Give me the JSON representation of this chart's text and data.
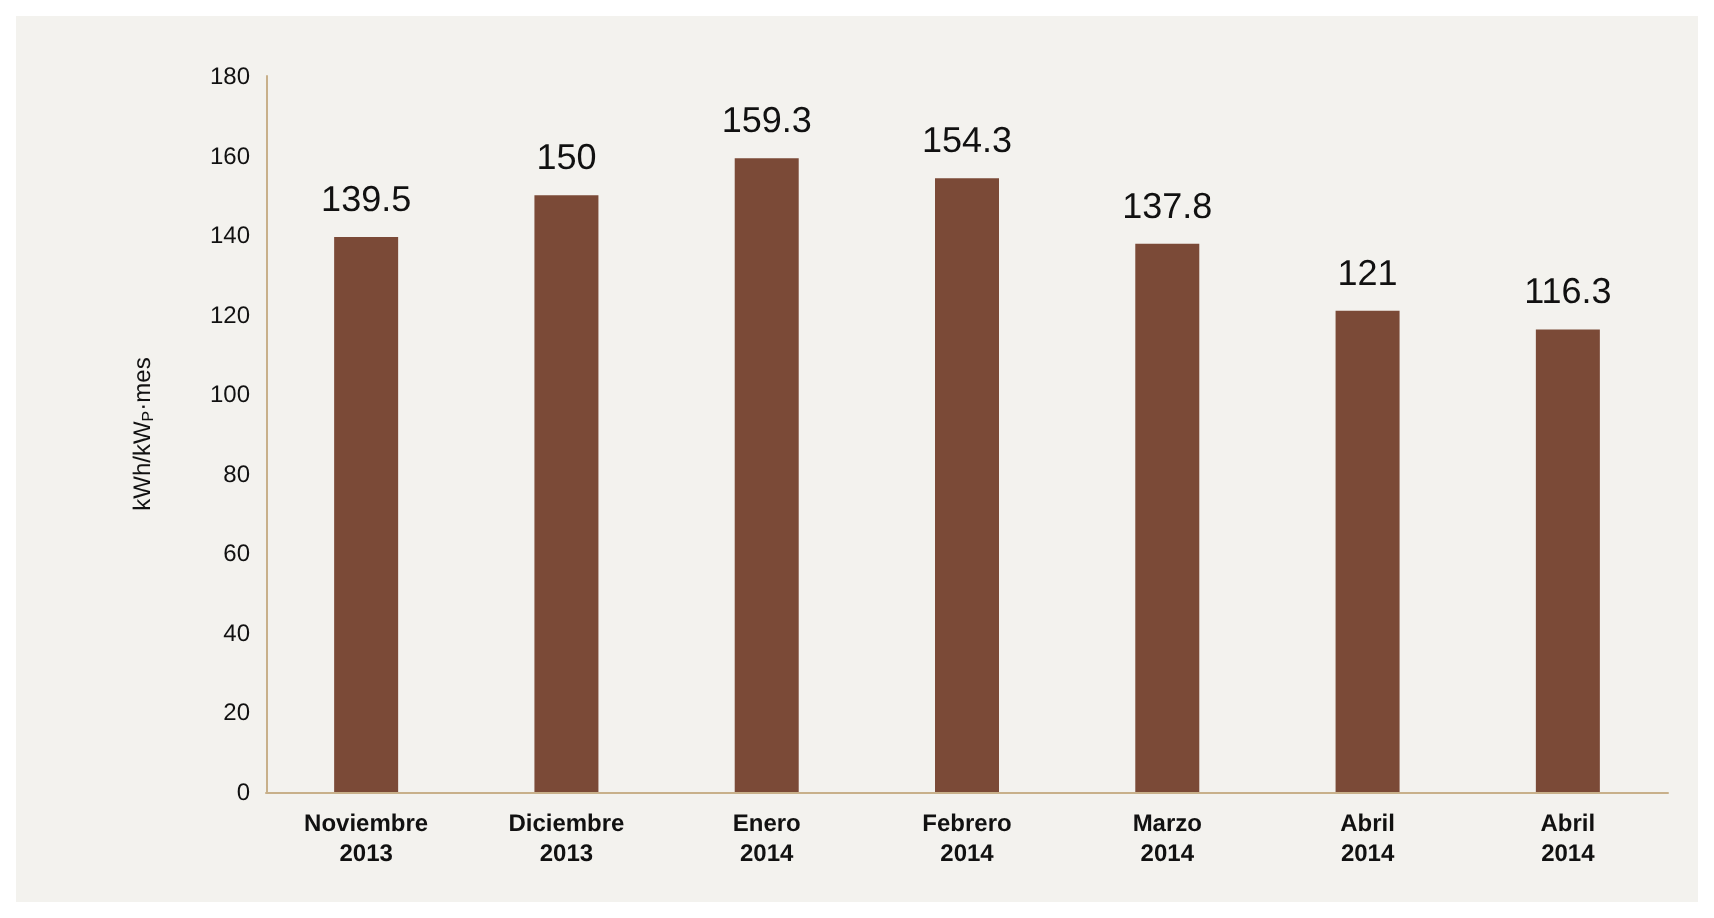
{
  "chart_data": {
    "type": "bar",
    "ylabel": "kWh/kW$_{P}$·mes",
    "categories": [
      "Noviembre\n2013",
      "Diciembre\n2013",
      "Enero\n2014",
      "Febrero\n2014",
      "Marzo\n2014",
      "Abril\n2014",
      "Abril\n2014"
    ],
    "values": [
      139.5,
      150,
      159.3,
      154.3,
      137.8,
      121,
      116.3
    ],
    "color": "#7b4a37",
    "ylim": [
      0,
      180
    ],
    "yticks": [
      0,
      20,
      40,
      60,
      80,
      100,
      120,
      140,
      160,
      180
    ],
    "grid": false,
    "data_labels": true
  }
}
